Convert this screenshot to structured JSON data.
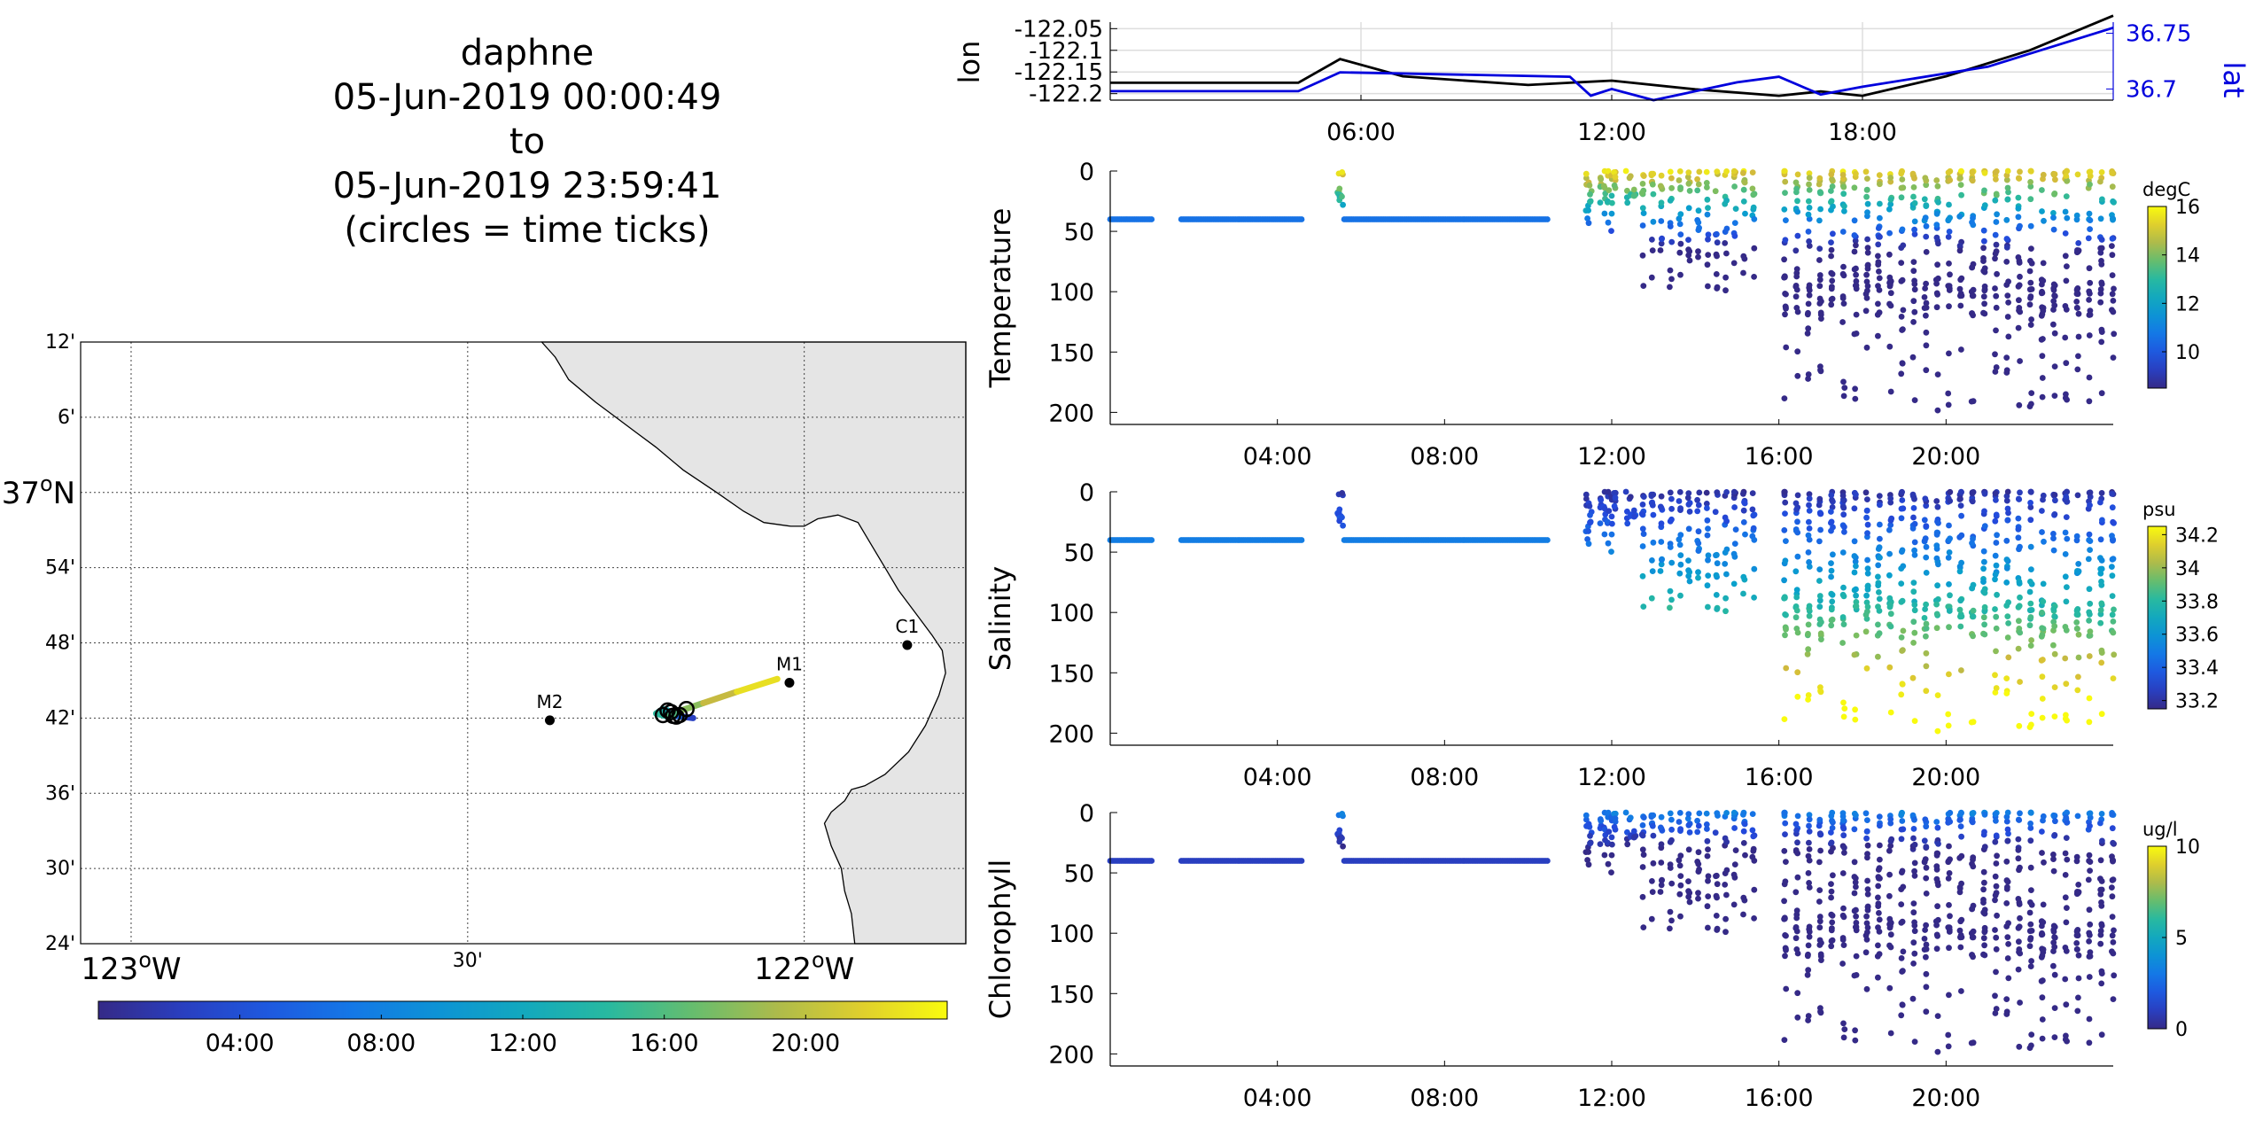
{
  "title_lines": [
    "daphne",
    "05-Jun-2019 00:00:49",
    "to",
    "05-Jun-2019 23:59:41",
    "(circles = time ticks)"
  ],
  "chart_data": [
    {
      "type": "map",
      "lat_ticks": [
        "12'",
        "6'",
        "37oN",
        "54'",
        "48'",
        "42'",
        "36'",
        "30'",
        "24'"
      ],
      "lon_ticks": [
        "123oW",
        "30'",
        "122oW"
      ],
      "stations": [
        {
          "name": "C1",
          "lat": 36.797,
          "lon": -121.847
        },
        {
          "name": "M1",
          "lat": 36.747,
          "lon": -122.022
        },
        {
          "name": "M2",
          "lat": 36.697,
          "lon": -122.378
        }
      ],
      "track": [
        {
          "lon": -122.165,
          "lat": 36.7,
          "t": 1
        },
        {
          "lon": -122.182,
          "lat": 36.702,
          "t": 4
        },
        {
          "lon": -122.195,
          "lat": 36.703,
          "t": 7
        },
        {
          "lon": -122.21,
          "lat": 36.704,
          "t": 9
        },
        {
          "lon": -122.203,
          "lat": 36.71,
          "t": 12
        },
        {
          "lon": -122.21,
          "lat": 36.712,
          "t": 13
        },
        {
          "lon": -122.22,
          "lat": 36.706,
          "t": 14
        },
        {
          "lon": -122.203,
          "lat": 36.702,
          "t": 15
        },
        {
          "lon": -122.18,
          "lat": 36.711,
          "t": 17
        },
        {
          "lon": -122.15,
          "lat": 36.72,
          "t": 19
        },
        {
          "lon": -122.1,
          "lat": 36.735,
          "t": 21
        },
        {
          "lon": -122.04,
          "lat": 36.752,
          "t": 23.9
        }
      ],
      "time_circles": [
        {
          "lon": -122.21,
          "lat": 36.704
        },
        {
          "lon": -122.203,
          "lat": 36.71
        },
        {
          "lon": -122.195,
          "lat": 36.703
        },
        {
          "lon": -122.19,
          "lat": 36.702
        },
        {
          "lon": -122.185,
          "lat": 36.704
        },
        {
          "lon": -122.175,
          "lat": 36.712
        },
        {
          "lon": -122.198,
          "lat": 36.708
        }
      ],
      "colorbar_ticks": [
        "04:00",
        "08:00",
        "12:00",
        "16:00",
        "20:00"
      ]
    },
    {
      "type": "line",
      "ylabel": "lon",
      "y2label": "lat",
      "y_ticks": [
        "-122.05",
        "-122.1",
        "-122.15",
        "-122.2"
      ],
      "y2_ticks": [
        "36.75",
        "36.7"
      ],
      "x_ticks": [
        "06:00",
        "12:00",
        "18:00"
      ],
      "series": [
        {
          "color": "#000000",
          "axis": "left",
          "points": [
            [
              0,
              -122.175
            ],
            [
              4.5,
              -122.175
            ],
            [
              5.5,
              -122.12
            ],
            [
              7,
              -122.16
            ],
            [
              10,
              -122.18
            ],
            [
              11,
              -122.175
            ],
            [
              12,
              -122.17
            ],
            [
              14,
              -122.19
            ],
            [
              16,
              -122.205
            ],
            [
              17,
              -122.195
            ],
            [
              18,
              -122.205
            ],
            [
              20,
              -122.16
            ],
            [
              22,
              -122.1
            ],
            [
              24,
              -122.02
            ]
          ]
        },
        {
          "color": "#0000dd",
          "axis": "right",
          "points": [
            [
              0,
              36.698
            ],
            [
              4.5,
              36.698
            ],
            [
              5.5,
              36.715
            ],
            [
              11,
              36.711
            ],
            [
              11.5,
              36.694
            ],
            [
              12,
              36.7
            ],
            [
              13,
              36.69
            ],
            [
              15,
              36.706
            ],
            [
              16,
              36.711
            ],
            [
              17,
              36.695
            ],
            [
              18,
              36.702
            ],
            [
              21,
              36.72
            ],
            [
              24,
              36.755
            ]
          ]
        }
      ]
    },
    {
      "type": "scatter",
      "ylabel": "Temperature",
      "units": "degC",
      "x_ticks": [
        "04:00",
        "08:00",
        "12:00",
        "16:00",
        "20:00"
      ],
      "y_ticks": [
        "0",
        "50",
        "100",
        "150",
        "200"
      ],
      "colorbar_ticks": [
        "16",
        "14",
        "12",
        "10"
      ],
      "clim": [
        8.5,
        16
      ]
    },
    {
      "type": "scatter",
      "ylabel": "Salinity",
      "units": "psu",
      "x_ticks": [
        "04:00",
        "08:00",
        "12:00",
        "16:00",
        "20:00"
      ],
      "y_ticks": [
        "0",
        "50",
        "100",
        "150",
        "200"
      ],
      "colorbar_ticks": [
        "34.2",
        "34",
        "33.8",
        "33.6",
        "33.4",
        "33.2"
      ],
      "clim": [
        33.15,
        34.25
      ]
    },
    {
      "type": "scatter",
      "ylabel": "Chlorophyll",
      "units": "ug/l",
      "x_ticks": [
        "04:00",
        "08:00",
        "12:00",
        "16:00",
        "20:00"
      ],
      "y_ticks": [
        "0",
        "50",
        "100",
        "150",
        "200"
      ],
      "colorbar_ticks": [
        "10",
        "5",
        "0"
      ],
      "clim": [
        0,
        10
      ]
    }
  ]
}
